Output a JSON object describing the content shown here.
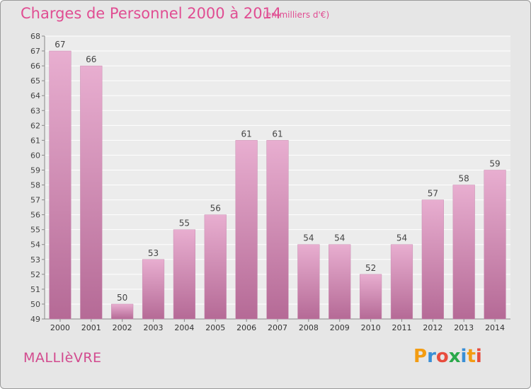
{
  "header": {
    "title": "Charges de Personnel 2000 à 2014",
    "subtitle": "(en milliers d'€)"
  },
  "footer": {
    "commune": "MALLIèVRE",
    "brand": "Proxiti"
  },
  "colors": {
    "title": "#e04d92",
    "bar_light": "#e8aed0",
    "bar_dark": "#b56a96",
    "panel": "#e6e6e6",
    "brand_letters": [
      "#f39c12",
      "#3a8fd6",
      "#e84c3d",
      "#2aa84a",
      "#3a8fd6",
      "#f39c12",
      "#e84c3d"
    ]
  },
  "chart_data": {
    "type": "bar",
    "categories": [
      "2000",
      "2001",
      "2002",
      "2003",
      "2004",
      "2005",
      "2006",
      "2007",
      "2008",
      "2009",
      "2010",
      "2011",
      "2012",
      "2013",
      "2014"
    ],
    "values": [
      67,
      66,
      50,
      53,
      55,
      56,
      61,
      61,
      54,
      54,
      52,
      54,
      57,
      58,
      59
    ],
    "ylim": [
      49,
      68
    ],
    "yticks": [
      49,
      50,
      51,
      52,
      53,
      54,
      55,
      56,
      57,
      58,
      59,
      60,
      61,
      62,
      63,
      64,
      65,
      66,
      67,
      68
    ],
    "grid": true,
    "data_labels": true
  }
}
